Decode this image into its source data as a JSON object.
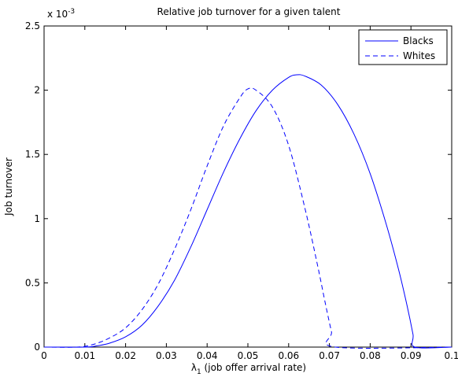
{
  "chart_data": {
    "type": "line",
    "title": "Relative job turnover for a given talent",
    "xlabel_symbol": "λ",
    "xlabel_subscript": "1",
    "xlabel_rest": " (job offer arrival rate)",
    "ylabel": "Job turnover",
    "y_exponent_base": "x 10",
    "y_exponent_power": "-3",
    "xlim": [
      0,
      0.1
    ],
    "ylim": [
      0,
      2.5
    ],
    "x_ticks": [
      0,
      0.01,
      0.02,
      0.03,
      0.04,
      0.05,
      0.06,
      0.07,
      0.08,
      0.09,
      0.1
    ],
    "x_tick_labels": [
      "0",
      "0.01",
      "0.02",
      "0.03",
      "0.04",
      "0.05",
      "0.06",
      "0.07",
      "0.08",
      "0.09",
      "0.1"
    ],
    "y_ticks": [
      0,
      0.5,
      1,
      1.5,
      2,
      2.5
    ],
    "y_tick_labels": [
      "0",
      "0.5",
      "1",
      "1.5",
      "2",
      "2.5"
    ],
    "grid": false,
    "legend_position": "top-right",
    "series": [
      {
        "name": "Blacks",
        "style": "solid",
        "color": "#0000ff",
        "x": [
          0,
          0.01,
          0.013,
          0.016,
          0.02,
          0.024,
          0.028,
          0.032,
          0.036,
          0.04,
          0.044,
          0.048,
          0.052,
          0.056,
          0.06,
          0.062,
          0.064,
          0.068,
          0.072,
          0.076,
          0.08,
          0.084,
          0.087,
          0.089,
          0.0905,
          0.091,
          0.1
        ],
        "y": [
          0,
          0,
          0.01,
          0.03,
          0.08,
          0.17,
          0.32,
          0.52,
          0.78,
          1.07,
          1.36,
          1.62,
          1.84,
          2.0,
          2.1,
          2.12,
          2.11,
          2.04,
          1.89,
          1.66,
          1.35,
          0.95,
          0.6,
          0.33,
          0.1,
          0,
          0
        ]
      },
      {
        "name": "Whites",
        "style": "dashed",
        "color": "#0000ff",
        "x": [
          0,
          0.008,
          0.012,
          0.016,
          0.02,
          0.024,
          0.028,
          0.032,
          0.036,
          0.04,
          0.044,
          0.048,
          0.05,
          0.052,
          0.056,
          0.06,
          0.064,
          0.067,
          0.069,
          0.0705,
          0.0715,
          0.1
        ],
        "y": [
          0,
          0,
          0.02,
          0.07,
          0.15,
          0.29,
          0.49,
          0.76,
          1.07,
          1.41,
          1.72,
          1.94,
          2.01,
          2.0,
          1.87,
          1.57,
          1.08,
          0.65,
          0.34,
          0.12,
          0,
          0
        ]
      }
    ]
  }
}
